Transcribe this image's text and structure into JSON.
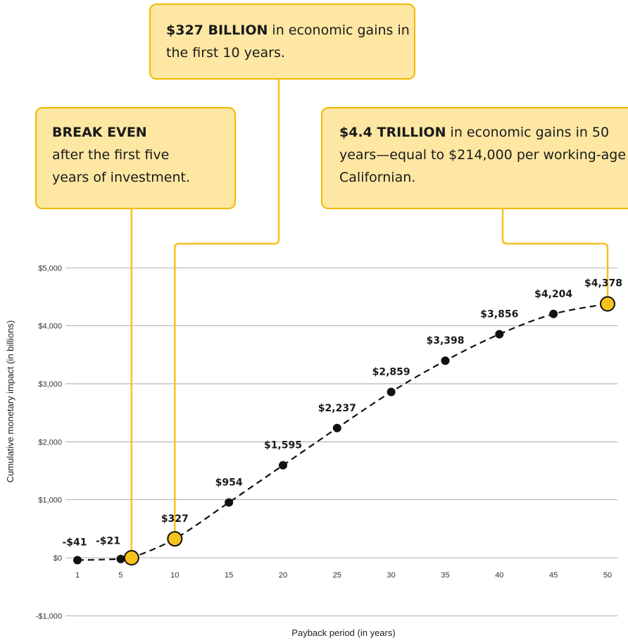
{
  "callouts": {
    "ten_year": {
      "bold": "$327 BILLION",
      "rest": " in economic gains in the first 10 years."
    },
    "breakeven": {
      "bold": "BREAK EVEN",
      "rest": "after the first five years of investment."
    },
    "fifty_year": {
      "bold": "$4.4 TRILLION",
      "rest": " in economic gains in 50 years—equal to $214,000 per working-age Californian."
    }
  },
  "colors": {
    "accent": "#f6c21c",
    "callout_bg": "#fde7a3",
    "callout_border": "#f2b800",
    "point": "#111111",
    "grid": "#999999"
  },
  "chart_data": {
    "type": "line",
    "xlabel": "Payback period (in years)",
    "ylabel": "Cumulative monetary impact (in billions)",
    "x_ticks": [
      1,
      5,
      10,
      15,
      20,
      25,
      30,
      35,
      40,
      45,
      50
    ],
    "y_ticks": [
      -1000,
      0,
      1000,
      2000,
      3000,
      4000,
      5000
    ],
    "y_tick_labels": [
      "-$1,000",
      "$0",
      "$1,000",
      "$2,000",
      "$3,000",
      "$4,000",
      "$5,000"
    ],
    "ylim": [
      -1000,
      5000
    ],
    "grid": "horizontal",
    "line_style": "dashed",
    "points": [
      {
        "x": 1,
        "y": -41,
        "label": "-$41",
        "highlight": false
      },
      {
        "x": 5,
        "y": -21,
        "label": "-$21",
        "highlight": false
      },
      {
        "x": 6,
        "y": 0,
        "label": "",
        "highlight": true
      },
      {
        "x": 10,
        "y": 327,
        "label": "$327",
        "highlight": true
      },
      {
        "x": 15,
        "y": 954,
        "label": "$954",
        "highlight": false
      },
      {
        "x": 20,
        "y": 1595,
        "label": "$1,595",
        "highlight": false
      },
      {
        "x": 25,
        "y": 2237,
        "label": "$2,237",
        "highlight": false
      },
      {
        "x": 30,
        "y": 2859,
        "label": "$2,859",
        "highlight": false
      },
      {
        "x": 35,
        "y": 3398,
        "label": "$3,398",
        "highlight": false
      },
      {
        "x": 40,
        "y": 3856,
        "label": "$3,856",
        "highlight": false
      },
      {
        "x": 45,
        "y": 4204,
        "label": "$4,204",
        "highlight": false
      },
      {
        "x": 50,
        "y": 4378,
        "label": "$4,378",
        "highlight": true
      }
    ]
  }
}
